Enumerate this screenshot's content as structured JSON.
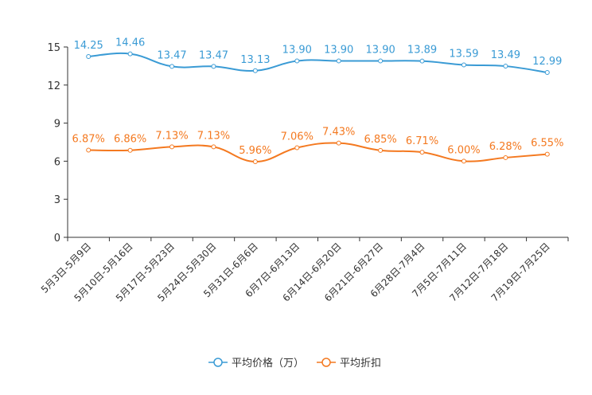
{
  "chart_data": {
    "type": "line",
    "categories": [
      "5月3日-5月9日",
      "5月10日-5月16日",
      "5月17日-5月23日",
      "5月24日-5月30日",
      "5月31日-6月6日",
      "6月7日-6月13日",
      "6月14日-6月20日",
      "6月21日-6月27日",
      "6月28日-7月4日",
      "7月5日-7月11日",
      "7月12日-7月18日",
      "7月19日-7月25日"
    ],
    "series": [
      {
        "name": "平均价格（万）",
        "color": "#3a9bd5",
        "values": [
          14.25,
          14.46,
          13.47,
          13.47,
          13.13,
          13.9,
          13.9,
          13.9,
          13.89,
          13.59,
          13.49,
          12.99
        ],
        "labels": [
          "14.25",
          "14.46",
          "13.47",
          "13.47",
          "13.13",
          "13.90",
          "13.90",
          "13.90",
          "13.89",
          "13.59",
          "13.49",
          "12.99"
        ]
      },
      {
        "name": "平均折扣",
        "color": "#f47920",
        "values": [
          6.87,
          6.86,
          7.13,
          7.13,
          5.96,
          7.06,
          7.43,
          6.85,
          6.71,
          6.0,
          6.28,
          6.55
        ],
        "labels": [
          "6.87%",
          "6.86%",
          "7.13%",
          "7.13%",
          "5.96%",
          "7.06%",
          "7.43%",
          "6.85%",
          "6.71%",
          "6.00%",
          "6.28%",
          "6.55%"
        ]
      }
    ],
    "yticks": [
      "0",
      "3",
      "6",
      "9",
      "12",
      "15"
    ],
    "ylim": [
      0,
      15
    ],
    "title": "",
    "xlabel": "",
    "ylabel": "",
    "legend_position": "bottom-center",
    "axis_color": "#333333"
  }
}
